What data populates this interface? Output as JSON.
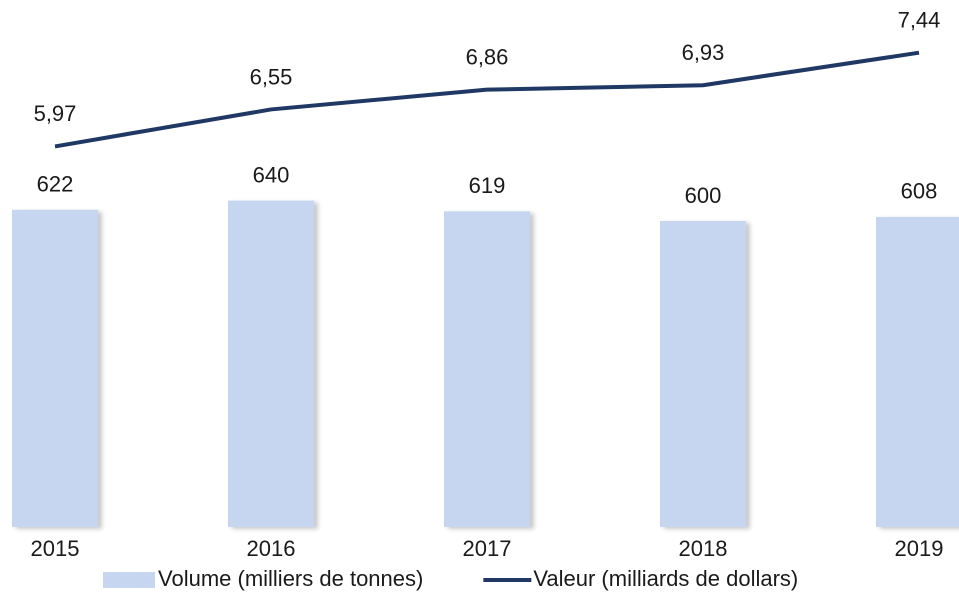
{
  "chart_data": {
    "type": "bar_line",
    "categories": [
      "2015",
      "2016",
      "2017",
      "2018",
      "2019"
    ],
    "series": [
      {
        "name": "Volume (milliers de tonnes)",
        "type": "bar",
        "color": "#c6d6f0",
        "values": [
          622,
          640,
          619,
          600,
          608
        ]
      },
      {
        "name": "Valeur (milliards de dollars)",
        "type": "line",
        "color": "#203864",
        "axis": "y2",
        "values": [
          5.97,
          6.55,
          6.86,
          6.93,
          7.44
        ],
        "value_labels": [
          "5,97",
          "6,55",
          "6,86",
          "6,93",
          "7,44"
        ]
      }
    ],
    "ylim": [
      0,
      1000
    ],
    "y2lim": [
      0,
      8
    ],
    "legend": "bottom"
  }
}
